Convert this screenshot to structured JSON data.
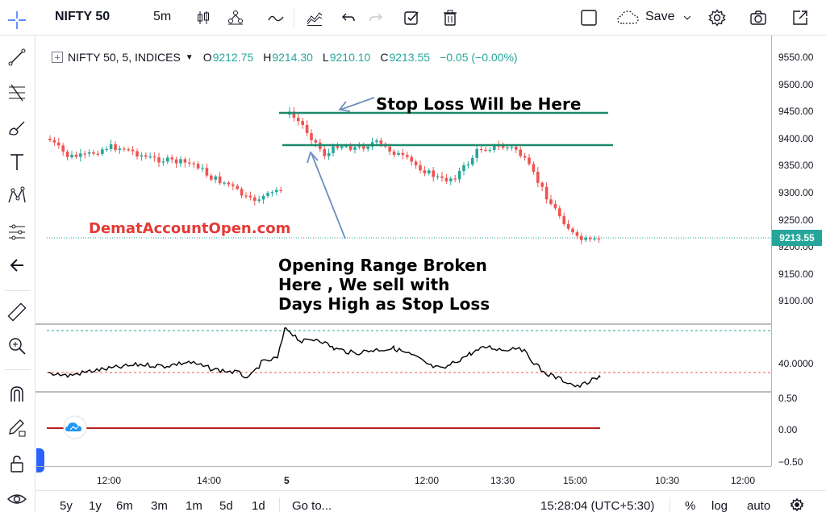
{
  "toolbar": {
    "symbol": "NIFTY 50",
    "interval": "5m",
    "save_label": "Save"
  },
  "legend": {
    "symbol_line": "NIFTY 50, 5, INDICES",
    "o_label": "O",
    "o_value": "9212.75",
    "h_label": "H",
    "h_value": "9214.30",
    "l_label": "L",
    "l_value": "9210.10",
    "c_label": "C",
    "c_value": "9213.55",
    "change": "−0.05 (−0.00%)"
  },
  "annotations": {
    "stop_loss": "Stop Loss Will be Here",
    "watermark": "DematAccountOpen.com",
    "opening_range_1": "Opening Range Broken",
    "opening_range_2": "Here , We sell with",
    "opening_range_3": "Days High as Stop Loss"
  },
  "price_axis": {
    "ticks": [
      "9550.00",
      "9500.00",
      "9450.00",
      "9400.00",
      "9350.00",
      "9300.00",
      "9250.00",
      "9200.00",
      "9150.00",
      "9100.00"
    ],
    "current_price": "9213.55"
  },
  "indicator_axis": {
    "ticks": [
      "40.0000"
    ]
  },
  "lower_axis": {
    "ticks": [
      "0.50",
      "0.00",
      "−0.50"
    ]
  },
  "time_axis": {
    "ticks": [
      "12:00",
      "14:00",
      "5",
      "12:00",
      "13:30",
      "15:00",
      "10:30",
      "12:00"
    ]
  },
  "bottom": {
    "ranges": [
      "5y",
      "1y",
      "6m",
      "3m",
      "1m",
      "5d",
      "1d"
    ],
    "goto": "Go to...",
    "clock": "15:28:04 (UTC+5:30)",
    "percent": "%",
    "log": "log",
    "auto": "auto"
  },
  "colors": {
    "up": "#26a69a",
    "down": "#ef5350",
    "accent": "#2962ff",
    "arrow": "#6c8ebf",
    "watermark": "#e53935"
  }
}
